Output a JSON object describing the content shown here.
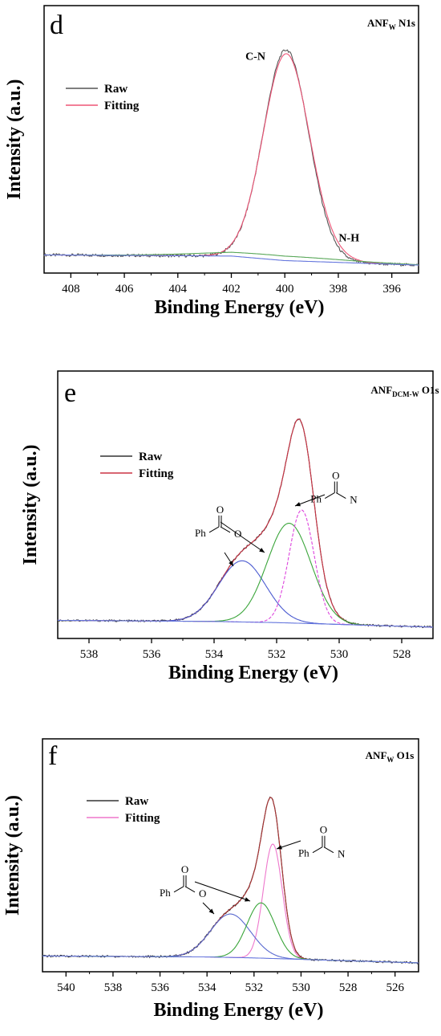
{
  "chart_data": [
    {
      "type": "line",
      "panel_letter": "d",
      "title": "ANF",
      "title_sub": "W",
      "title_suffix": " N1s",
      "xlabel": "Binding Energy (eV)",
      "ylabel": "Intensity (a.u.)",
      "xlim": [
        409,
        395
      ],
      "x_ticks": [
        "408",
        "406",
        "404",
        "402",
        "400",
        "398",
        "396"
      ],
      "x_tick_values": [
        408,
        406,
        404,
        402,
        400,
        398,
        396
      ],
      "ylim": [
        -0.08,
        1.1
      ],
      "legend": [
        "Raw",
        "Fitting"
      ],
      "legend_position": "top-left",
      "series": [
        {
          "name": "Raw",
          "color": "#555555",
          "peaks": [
            [
              399.95,
              0.93,
              0.85
            ]
          ],
          "noise": 0.006
        },
        {
          "name": "Fitting",
          "color": "#ee5577",
          "peaks": [
            [
              399.95,
              0.91,
              0.86
            ],
            [
              398.4,
              0.02,
              0.8
            ]
          ]
        },
        {
          "color": "#5aa85a",
          "peaks": [
            [
              400.5,
              0.02,
              2.5
            ]
          ]
        },
        {
          "color": "#6677dd",
          "peaks": []
        }
      ],
      "baseline": [
        [
          409,
          0.0
        ],
        [
          402,
          -0.005
        ],
        [
          400,
          -0.025
        ],
        [
          395,
          -0.045
        ]
      ],
      "annotations": [
        {
          "text": "C-N",
          "x": 401.1,
          "y": 0.86
        },
        {
          "text": "N-H",
          "x": 397.6,
          "y": 0.06
        }
      ],
      "colors": {
        "raw": "#555555",
        "fitting": "#ee5577",
        "component": "#5aa85a",
        "background": "#6677dd"
      }
    },
    {
      "type": "line",
      "panel_letter": "e",
      "title": "ANF",
      "title_sub": "DCM-W",
      "title_suffix": " O1s",
      "xlabel": "Binding Energy (eV)",
      "ylabel": "Intensity (a.u.)",
      "xlim": [
        539,
        527
      ],
      "x_ticks": [
        "538",
        "536",
        "534",
        "532",
        "530",
        "528"
      ],
      "x_tick_values": [
        538,
        536,
        534,
        532,
        530,
        528
      ],
      "ylim": [
        -0.08,
        1.1
      ],
      "legend": [
        "Raw",
        "Fitting"
      ],
      "legend_position": "top-left",
      "series": [
        {
          "name": "Raw",
          "color": "#333333",
          "peaks": [
            [
              533.1,
              0.27,
              0.75
            ],
            [
              531.6,
              0.44,
              0.7
            ],
            [
              531.2,
              0.5,
              0.4
            ]
          ],
          "noise": 0.004
        },
        {
          "name": "Fitting",
          "color": "#cc3344",
          "peaks": [
            [
              533.1,
              0.27,
              0.75
            ],
            [
              531.6,
              0.44,
              0.7
            ],
            [
              531.2,
              0.5,
              0.4
            ]
          ]
        },
        {
          "color": "#4a5ad0",
          "peaks": [
            [
              533.1,
              0.27,
              0.75
            ]
          ]
        },
        {
          "color": "#3aa53a",
          "peaks": [
            [
              531.6,
              0.44,
              0.7
            ]
          ]
        },
        {
          "color": "#dd44dd",
          "dashed": true,
          "peaks": [
            [
              531.2,
              0.5,
              0.4
            ]
          ]
        },
        {
          "color": "#6677dd",
          "peaks": []
        }
      ],
      "baseline": [
        [
          539,
          0.0
        ],
        [
          534,
          -0.005
        ],
        [
          532,
          -0.01
        ],
        [
          527,
          -0.03
        ]
      ],
      "structures": [
        {
          "label": "Ph",
          "atom": "N",
          "x": 530.3,
          "y": 0.57
        },
        {
          "label": "Ph",
          "atom": "O",
          "x": 534.0,
          "y": 0.42
        }
      ],
      "colors": {
        "raw": "#333333",
        "fitting": "#cc3344",
        "c1": "#4a5ad0",
        "c2": "#3aa53a",
        "c3": "#dd44dd"
      }
    },
    {
      "type": "line",
      "panel_letter": "f",
      "title": "ANF",
      "title_sub": "W",
      "title_suffix": " O1s",
      "xlabel": "Binding Energy (eV)",
      "ylabel": "Intensity (a.u.)",
      "xlim": [
        541,
        525
      ],
      "x_ticks": [
        "540",
        "538",
        "536",
        "534",
        "532",
        "530",
        "528",
        "526"
      ],
      "x_tick_values": [
        540,
        538,
        536,
        534,
        532,
        530,
        528,
        526
      ],
      "ylim": [
        -0.08,
        1.1
      ],
      "legend": [
        "Raw",
        "Fitting"
      ],
      "legend_position": "top-left",
      "series": [
        {
          "name": "Raw",
          "color": "#333333",
          "peaks": [
            [
              533.0,
              0.22,
              0.85
            ],
            [
              531.7,
              0.28,
              0.6
            ],
            [
              531.2,
              0.58,
              0.4
            ]
          ],
          "noise": 0.005
        },
        {
          "name": "Fitting",
          "color": "#ee77cc",
          "peaks": [
            [
              531.2,
              0.58,
              0.4
            ]
          ]
        },
        {
          "color": "#aa3333",
          "peaks": [
            [
              533.0,
              0.22,
              0.85
            ],
            [
              531.7,
              0.28,
              0.6
            ],
            [
              531.2,
              0.58,
              0.4
            ]
          ]
        },
        {
          "color": "#5a6ad0",
          "peaks": [
            [
              533.0,
              0.22,
              0.85
            ]
          ]
        },
        {
          "color": "#3aa53a",
          "peaks": [
            [
              531.7,
              0.28,
              0.6
            ]
          ]
        },
        {
          "color": "#6677dd",
          "peaks": []
        }
      ],
      "baseline": [
        [
          541,
          0.0
        ],
        [
          534,
          -0.005
        ],
        [
          532,
          -0.01
        ],
        [
          525,
          -0.035
        ]
      ],
      "structures": [
        {
          "label": "Ph",
          "atom": "N",
          "x": 529.3,
          "y": 0.56
        },
        {
          "label": "Ph",
          "atom": "O",
          "x": 535.2,
          "y": 0.36
        }
      ],
      "colors": {
        "raw": "#333333",
        "fitting": "#ee77cc",
        "c_sum": "#aa3333",
        "c1": "#5a6ad0",
        "c2": "#3aa53a"
      }
    }
  ]
}
